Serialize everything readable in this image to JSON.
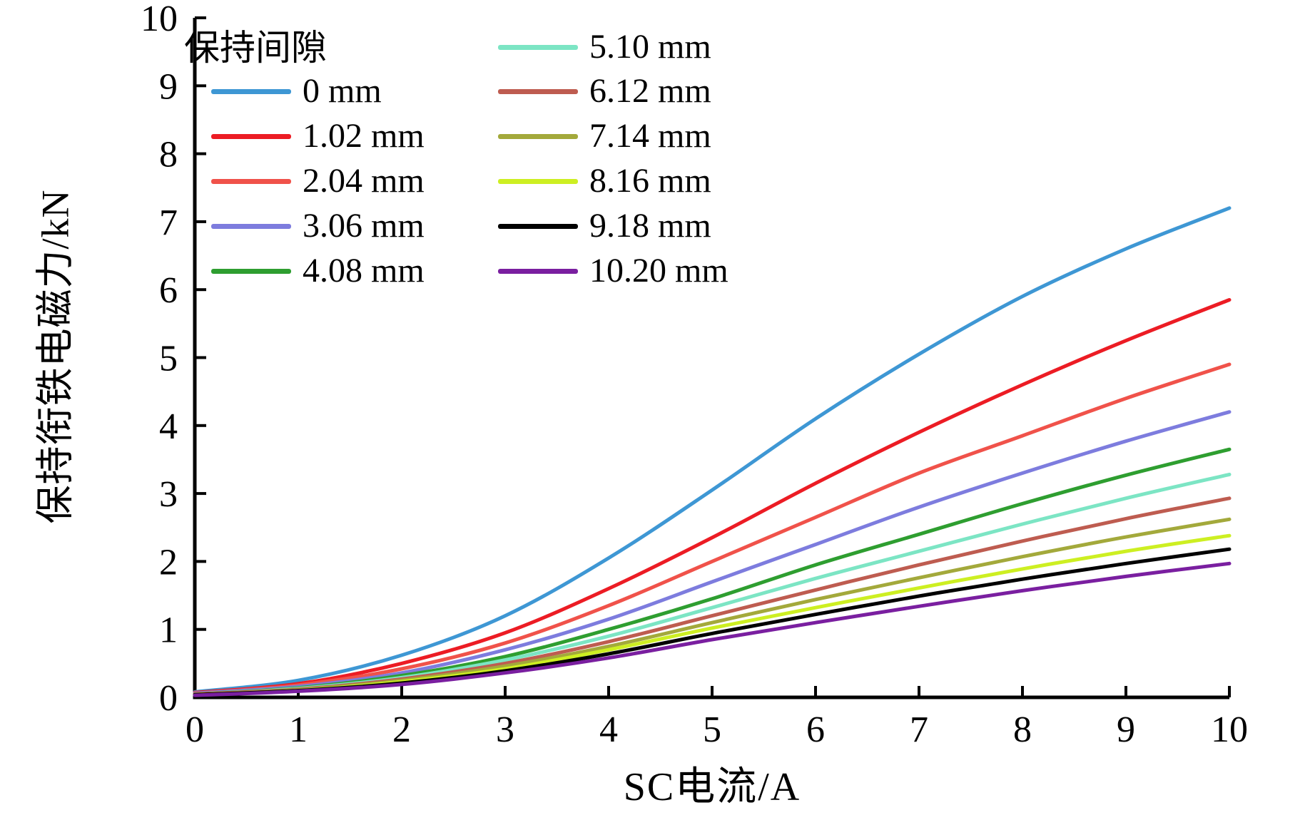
{
  "chart_data": {
    "type": "line",
    "title": "",
    "xlabel": "SC电流/A",
    "ylabel": "保持衔铁电磁力/kN",
    "xlim": [
      0,
      10
    ],
    "ylim": [
      0,
      10
    ],
    "x_ticks": [
      "0",
      "1",
      "2",
      "3",
      "4",
      "5",
      "6",
      "7",
      "8",
      "9",
      "10"
    ],
    "y_ticks": [
      "0",
      "1",
      "2",
      "3",
      "4",
      "5",
      "6",
      "7",
      "8",
      "9",
      "10"
    ],
    "grid": false,
    "axis_color": "#000000",
    "background_color": "#ffffff",
    "legend": {
      "title": "保持间隙",
      "position": "top-left-inside",
      "columns": 2
    },
    "x": [
      0,
      1,
      2,
      3,
      4,
      5,
      6,
      7,
      8,
      9,
      10
    ],
    "series": [
      {
        "name": "0 mm",
        "color": "#3e97d4",
        "values": [
          0.08,
          0.25,
          0.62,
          1.2,
          2.05,
          3.05,
          4.1,
          5.05,
          5.9,
          6.6,
          7.2
        ]
      },
      {
        "name": "1.02 mm",
        "color": "#ec1c24",
        "values": [
          0.07,
          0.2,
          0.5,
          0.95,
          1.6,
          2.35,
          3.15,
          3.9,
          4.6,
          5.25,
          5.85
        ]
      },
      {
        "name": "2.04 mm",
        "color": "#f0524a",
        "values": [
          0.06,
          0.18,
          0.42,
          0.8,
          1.35,
          2.0,
          2.65,
          3.3,
          3.85,
          4.4,
          4.9
        ]
      },
      {
        "name": "3.06 mm",
        "color": "#7d7cde",
        "values": [
          0.06,
          0.16,
          0.36,
          0.7,
          1.15,
          1.7,
          2.25,
          2.8,
          3.3,
          3.77,
          4.2
        ]
      },
      {
        "name": "4.08 mm",
        "color": "#2e9e30",
        "values": [
          0.05,
          0.14,
          0.32,
          0.6,
          1.0,
          1.45,
          1.95,
          2.4,
          2.85,
          3.27,
          3.65
        ]
      },
      {
        "name": "5.10 mm",
        "color": "#7ce5c4",
        "values": [
          0.05,
          0.13,
          0.29,
          0.55,
          0.9,
          1.32,
          1.75,
          2.15,
          2.55,
          2.93,
          3.28
        ]
      },
      {
        "name": "6.12 mm",
        "color": "#be5c50",
        "values": [
          0.05,
          0.12,
          0.27,
          0.5,
          0.82,
          1.2,
          1.58,
          1.95,
          2.3,
          2.63,
          2.93
        ]
      },
      {
        "name": "7.14 mm",
        "color": "#a3a93b",
        "values": [
          0.04,
          0.11,
          0.25,
          0.46,
          0.75,
          1.1,
          1.44,
          1.76,
          2.07,
          2.36,
          2.62
        ]
      },
      {
        "name": "8.16 mm",
        "color": "#cdef22",
        "values": [
          0.04,
          0.1,
          0.23,
          0.42,
          0.7,
          1.02,
          1.32,
          1.61,
          1.89,
          2.15,
          2.38
        ]
      },
      {
        "name": "9.18 mm",
        "color": "#000000",
        "values": [
          0.04,
          0.1,
          0.21,
          0.39,
          0.64,
          0.94,
          1.22,
          1.49,
          1.74,
          1.97,
          2.18
        ]
      },
      {
        "name": "10.20 mm",
        "color": "#7a1fa0",
        "values": [
          0.03,
          0.09,
          0.19,
          0.36,
          0.58,
          0.85,
          1.1,
          1.34,
          1.57,
          1.78,
          1.97
        ]
      }
    ]
  }
}
